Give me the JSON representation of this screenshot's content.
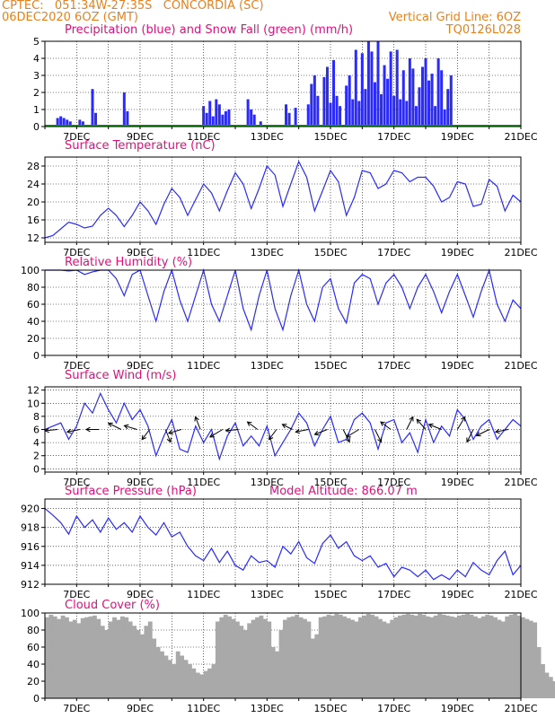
{
  "header": {
    "left_line1": "CPTEC:   051:34W-27:35S   CONCORDIA (SC)",
    "left_line2": "06DEC2020 6OZ (GMT)",
    "right_line1": "Vertical Grid Line: 6OZ",
    "right_line2": "TQ0126L028",
    "accent_color": "#e8801c"
  },
  "x_axis": {
    "tick_labels": [
      "7DEC",
      "9DEC",
      "11DEC",
      "13DEC",
      "15DEC",
      "17DEC",
      "19DEC",
      "21DEC"
    ],
    "day_range": [
      0,
      15
    ]
  },
  "chart_data": [
    {
      "type": "bar",
      "title": "Precipitation (blue) and Snow Fall (green) (mm/h)",
      "ylim": [
        0,
        5
      ],
      "yticks": [
        0,
        1,
        2,
        3,
        4,
        5
      ],
      "colors": {
        "precip": "#2a2aff",
        "snow": "#00b000"
      },
      "series": [
        {
          "name": "Precipitation",
          "x": [
            0.4,
            0.5,
            0.6,
            0.7,
            0.8,
            1.1,
            1.2,
            1.5,
            1.6,
            2.5,
            2.6,
            5.0,
            5.1,
            5.2,
            5.3,
            5.4,
            5.5,
            5.6,
            5.7,
            5.8,
            6.4,
            6.5,
            6.6,
            6.8,
            7.6,
            7.7,
            7.9,
            8.3,
            8.4,
            8.5,
            8.6,
            8.8,
            8.9,
            9.0,
            9.1,
            9.2,
            9.3,
            9.5,
            9.6,
            9.7,
            9.8,
            9.9,
            10.0,
            10.1,
            10.2,
            10.3,
            10.4,
            10.5,
            10.6,
            10.7,
            10.8,
            10.9,
            11.0,
            11.1,
            11.2,
            11.3,
            11.4,
            11.5,
            11.6,
            11.7,
            11.8,
            11.9,
            12.0,
            12.1,
            12.2,
            12.3,
            12.4,
            12.5,
            12.6,
            12.7,
            12.8
          ],
          "values": [
            0.5,
            0.6,
            0.5,
            0.4,
            0.3,
            0.4,
            0.3,
            2.2,
            0.8,
            2.0,
            0.9,
            1.2,
            0.8,
            1.5,
            0.6,
            1.6,
            1.3,
            0.7,
            0.9,
            1.0,
            1.6,
            1.0,
            0.7,
            0.3,
            1.3,
            0.8,
            1.1,
            1.3,
            2.5,
            3.0,
            1.8,
            2.9,
            3.5,
            1.4,
            3.9,
            1.8,
            1.2,
            2.4,
            3.0,
            1.6,
            4.5,
            1.5,
            4.3,
            2.2,
            5.0,
            4.4,
            2.6,
            5.0,
            1.9,
            3.6,
            2.8,
            4.4,
            1.8,
            4.5,
            1.6,
            3.3,
            1.5,
            4.0,
            3.4,
            1.2,
            2.3,
            3.5,
            4.0,
            2.7,
            3.1,
            1.2,
            4.0,
            3.3,
            1.0,
            2.2,
            3.0
          ]
        },
        {
          "name": "Snow Fall",
          "x": [],
          "values": []
        }
      ]
    },
    {
      "type": "line",
      "title": "Surface Temperature (nC)",
      "ylim": [
        11,
        30
      ],
      "yticks": [
        12,
        16,
        20,
        24,
        28
      ],
      "x": [
        0,
        0.25,
        0.5,
        0.75,
        1,
        1.25,
        1.5,
        1.75,
        2,
        2.25,
        2.5,
        2.75,
        3,
        3.25,
        3.5,
        3.75,
        4,
        4.25,
        4.5,
        4.75,
        5,
        5.25,
        5.5,
        5.75,
        6,
        6.25,
        6.5,
        6.75,
        7,
        7.25,
        7.5,
        7.75,
        8,
        8.25,
        8.5,
        8.75,
        9,
        9.25,
        9.5,
        9.75,
        10,
        10.25,
        10.5,
        10.75,
        11,
        11.25,
        11.5,
        11.75,
        12,
        12.25,
        12.5,
        12.75,
        13,
        13.25,
        13.5,
        13.75,
        14,
        14.25,
        14.5,
        14.75,
        15
      ],
      "values": [
        12.0,
        12.5,
        14.0,
        15.5,
        15.0,
        14.2,
        14.6,
        17.0,
        18.6,
        17.0,
        14.5,
        17.0,
        20.0,
        18.0,
        15.0,
        19.5,
        23.0,
        21.0,
        17.0,
        20.5,
        24.0,
        22.0,
        18.0,
        22.5,
        26.5,
        24.0,
        18.5,
        23.0,
        28.0,
        26.0,
        19.0,
        24.0,
        29.0,
        25.5,
        18.0,
        22.5,
        27.0,
        24.5,
        17.0,
        21.0,
        27.0,
        26.5,
        23.0,
        24.0,
        27.0,
        26.5,
        24.5,
        25.5,
        25.5,
        23.5,
        20.0,
        21.0,
        24.5,
        24.0,
        19.0,
        19.5,
        25.0,
        23.5,
        18.0,
        21.5,
        20.0
      ]
    },
    {
      "type": "line",
      "title": "Relative Humidity (%)",
      "ylim": [
        0,
        100
      ],
      "yticks": [
        0,
        20,
        40,
        60,
        80,
        100
      ],
      "x": [
        0,
        0.25,
        0.5,
        0.75,
        1,
        1.25,
        1.5,
        1.75,
        2,
        2.25,
        2.5,
        2.75,
        3,
        3.25,
        3.5,
        3.75,
        4,
        4.25,
        4.5,
        4.75,
        5,
        5.25,
        5.5,
        5.75,
        6,
        6.25,
        6.5,
        6.75,
        7,
        7.25,
        7.5,
        7.75,
        8,
        8.25,
        8.5,
        8.75,
        9,
        9.25,
        9.5,
        9.75,
        10,
        10.25,
        10.5,
        10.75,
        11,
        11.25,
        11.5,
        11.75,
        12,
        12.25,
        12.5,
        12.75,
        13,
        13.25,
        13.5,
        13.75,
        14,
        14.25,
        14.5,
        14.75,
        15
      ],
      "values": [
        100,
        100,
        100,
        99,
        100,
        95,
        98,
        100,
        100,
        90,
        70,
        95,
        100,
        70,
        40,
        75,
        100,
        65,
        40,
        70,
        100,
        60,
        40,
        70,
        100,
        55,
        30,
        70,
        100,
        55,
        30,
        70,
        100,
        60,
        40,
        80,
        90,
        55,
        38,
        85,
        95,
        90,
        60,
        85,
        95,
        80,
        55,
        80,
        95,
        75,
        50,
        75,
        95,
        70,
        45,
        75,
        100,
        60,
        40,
        65,
        55
      ]
    },
    {
      "type": "line",
      "title": "Surface Wind (m/s)",
      "ylim": [
        -0.5,
        12.5
      ],
      "yticks": [
        0,
        2,
        4,
        6,
        8,
        10,
        12
      ],
      "x": [
        0,
        0.25,
        0.5,
        0.75,
        1,
        1.25,
        1.5,
        1.75,
        2,
        2.25,
        2.5,
        2.75,
        3,
        3.25,
        3.5,
        3.75,
        4,
        4.25,
        4.5,
        4.75,
        5,
        5.25,
        5.5,
        5.75,
        6,
        6.25,
        6.5,
        6.75,
        7,
        7.25,
        7.5,
        7.75,
        8,
        8.25,
        8.5,
        8.75,
        9,
        9.25,
        9.5,
        9.75,
        10,
        10.25,
        10.5,
        10.75,
        11,
        11.25,
        11.5,
        11.75,
        12,
        12.25,
        12.5,
        12.75,
        13,
        13.25,
        13.5,
        13.75,
        14,
        14.25,
        14.5,
        14.75,
        15
      ],
      "values": [
        6.0,
        6.5,
        7.0,
        4.5,
        6.5,
        10.0,
        8.5,
        11.5,
        9.0,
        7.0,
        10.0,
        7.5,
        9.0,
        6.5,
        2.0,
        5.0,
        7.5,
        3.0,
        2.5,
        6.5,
        4.0,
        6.0,
        1.5,
        5.0,
        7.0,
        3.5,
        5.0,
        3.5,
        6.5,
        2.0,
        4.0,
        6.0,
        8.5,
        7.0,
        3.5,
        6.0,
        8.0,
        4.0,
        4.5,
        7.5,
        8.5,
        7.0,
        3.0,
        7.0,
        7.5,
        4.0,
        5.5,
        2.5,
        7.5,
        4.0,
        6.5,
        5.0,
        9.0,
        7.5,
        4.5,
        6.5,
        7.5,
        4.5,
        6.0,
        7.5,
        6.5
      ],
      "arrows": [
        {
          "day": 0.4,
          "dx": -1,
          "dy": 0.1
        },
        {
          "day": 1.1,
          "dx": -1,
          "dy": 0.2
        },
        {
          "day": 1.7,
          "dx": -1,
          "dy": 0.0
        },
        {
          "day": 2.4,
          "dx": -1,
          "dy": -0.5
        },
        {
          "day": 2.9,
          "dx": -1,
          "dy": -0.3
        },
        {
          "day": 3.3,
          "dx": -0.6,
          "dy": 0.8
        },
        {
          "day": 3.8,
          "dx": 0.4,
          "dy": 1
        },
        {
          "day": 4.3,
          "dx": -1,
          "dy": 0.3
        },
        {
          "day": 4.9,
          "dx": -0.4,
          "dy": -1
        },
        {
          "day": 5.6,
          "dx": -1,
          "dy": 0.6
        },
        {
          "day": 6.1,
          "dx": -1,
          "dy": 0.1
        },
        {
          "day": 6.7,
          "dx": -0.8,
          "dy": -0.6
        },
        {
          "day": 7.3,
          "dx": -0.6,
          "dy": 0.8
        },
        {
          "day": 7.8,
          "dx": -0.8,
          "dy": -0.4
        },
        {
          "day": 8.3,
          "dx": -1,
          "dy": 0.2
        },
        {
          "day": 8.9,
          "dx": -1,
          "dy": 0.4
        },
        {
          "day": 9.4,
          "dx": 0.5,
          "dy": 1
        },
        {
          "day": 9.9,
          "dx": -1,
          "dy": 0.6
        },
        {
          "day": 10.4,
          "dx": 0.5,
          "dy": 1
        },
        {
          "day": 10.9,
          "dx": -0.8,
          "dy": -0.6
        },
        {
          "day": 11.4,
          "dx": 0.5,
          "dy": -1
        },
        {
          "day": 12.0,
          "dx": -0.7,
          "dy": -0.8
        },
        {
          "day": 12.5,
          "dx": -1,
          "dy": -0.4
        },
        {
          "day": 13.0,
          "dx": 0.6,
          "dy": -1
        },
        {
          "day": 13.5,
          "dx": -0.5,
          "dy": 1
        },
        {
          "day": 14.0,
          "dx": -1,
          "dy": 0.5
        },
        {
          "day": 14.6,
          "dx": -1,
          "dy": 0.2
        }
      ]
    },
    {
      "type": "line",
      "title": "Surface Pressure (hPa)",
      "subtitle": "Model Altitude: 866.07 m",
      "ylim": [
        912,
        921
      ],
      "yticks": [
        912,
        914,
        916,
        918,
        920
      ],
      "x": [
        0,
        0.25,
        0.5,
        0.75,
        1,
        1.25,
        1.5,
        1.75,
        2,
        2.25,
        2.5,
        2.75,
        3,
        3.25,
        3.5,
        3.75,
        4,
        4.25,
        4.5,
        4.75,
        5,
        5.25,
        5.5,
        5.75,
        6,
        6.25,
        6.5,
        6.75,
        7,
        7.25,
        7.5,
        7.75,
        8,
        8.25,
        8.5,
        8.75,
        9,
        9.25,
        9.5,
        9.75,
        10,
        10.25,
        10.5,
        10.75,
        11,
        11.25,
        11.5,
        11.75,
        12,
        12.25,
        12.5,
        12.75,
        13,
        13.25,
        13.5,
        13.75,
        14,
        14.25,
        14.5,
        14.75,
        15
      ],
      "values": [
        920.0,
        919.3,
        918.5,
        917.3,
        919.2,
        918.0,
        918.8,
        917.5,
        919.0,
        917.8,
        918.5,
        917.5,
        919.2,
        918.0,
        917.2,
        918.5,
        917.0,
        917.5,
        916.0,
        915.0,
        914.5,
        915.8,
        914.3,
        915.5,
        914.0,
        913.5,
        915.0,
        914.3,
        914.5,
        913.8,
        916.0,
        915.2,
        916.5,
        914.8,
        914.2,
        916.3,
        917.2,
        915.8,
        916.5,
        915.0,
        914.5,
        915.0,
        913.8,
        914.2,
        912.8,
        913.8,
        913.5,
        912.8,
        913.5,
        912.5,
        913.0,
        912.5,
        913.5,
        912.8,
        914.3,
        913.5,
        913.0,
        914.5,
        915.5,
        913.0,
        914.0
      ]
    },
    {
      "type": "bar",
      "title": "Cloud Cover (%)",
      "ylim": [
        0,
        100
      ],
      "yticks": [
        0,
        20,
        40,
        60,
        80,
        100
      ],
      "color": "#a9a9a9",
      "x_start": 0,
      "x_step": 0.125,
      "values": [
        95,
        98,
        96,
        93,
        97,
        95,
        90,
        92,
        88,
        94,
        95,
        96,
        97,
        93,
        85,
        80,
        90,
        95,
        92,
        96,
        95,
        90,
        85,
        80,
        75,
        85,
        90,
        70,
        60,
        55,
        50,
        45,
        40,
        55,
        50,
        45,
        40,
        35,
        30,
        28,
        32,
        35,
        40,
        90,
        95,
        98,
        96,
        93,
        90,
        85,
        80,
        88,
        92,
        95,
        97,
        93,
        90,
        60,
        55,
        80,
        92,
        95,
        96,
        98,
        95,
        93,
        90,
        70,
        75,
        95,
        96,
        98,
        97,
        99,
        98,
        96,
        94,
        92,
        90,
        95,
        97,
        99,
        98,
        96,
        93,
        90,
        88,
        92,
        95,
        97,
        98,
        99,
        98,
        97,
        99,
        98,
        96,
        95,
        97,
        99,
        98,
        97,
        96,
        95,
        97,
        98,
        99,
        98,
        96,
        94,
        96,
        98,
        97,
        95,
        92,
        90,
        96,
        98,
        99,
        97,
        95,
        93,
        91,
        89,
        60,
        40,
        30,
        25,
        20,
        15,
        10,
        15,
        60
      ]
    }
  ]
}
